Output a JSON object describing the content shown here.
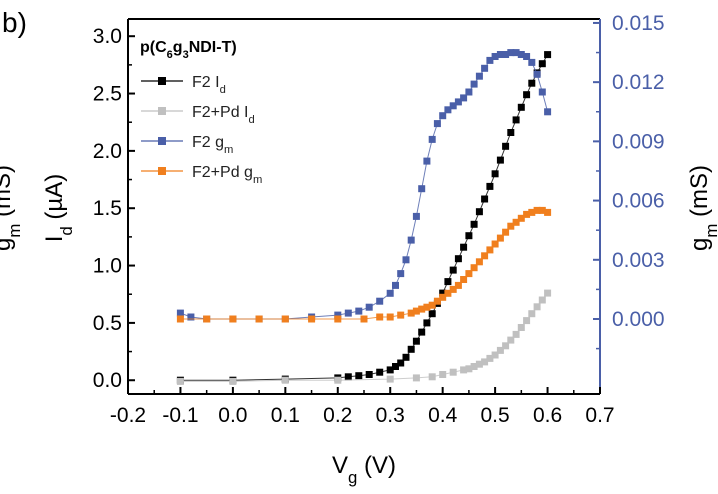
{
  "chart_data": {
    "type": "scatter",
    "panel_label": "b)",
    "legend_title": {
      "main": "p(C",
      "sub1": "6",
      "mid": "g",
      "sub2": "3",
      "tail": "NDI-T)"
    },
    "legend_position": "top-left",
    "xlabel": {
      "main": "V",
      "sub": "g",
      "unit": " (V)"
    },
    "ylabel_left": {
      "main": "I",
      "sub": "d",
      "unit": " (µA)"
    },
    "ylabel_right": {
      "main": "g",
      "sub": "m",
      "unit": " (mS)"
    },
    "ylabel_left_clipped": {
      "main": "g",
      "sub": "m",
      "unit": " (mS)"
    },
    "xlim": [
      -0.2,
      0.7
    ],
    "ylim_left": [
      -0.12,
      3.15
    ],
    "ylim_right": [
      -0.0038,
      0.0152
    ],
    "x_ticks": [
      "-0.2",
      "-0.1",
      "0.0",
      "0.1",
      "0.2",
      "0.3",
      "0.4",
      "0.5",
      "0.6",
      "0.7"
    ],
    "y_left_ticks": [
      "0.0",
      "0.5",
      "1.0",
      "1.5",
      "2.0",
      "2.5",
      "3.0"
    ],
    "y_right_ticks": [
      "0.000",
      "0.003",
      "0.006",
      "0.009",
      "0.012",
      "0.015"
    ],
    "grid": false,
    "colors": {
      "axis": "#000000",
      "right_axis": "#4a5fa8",
      "F2_Id": "#000000",
      "F2Pd_Id": "#c0c0c0",
      "F2_gm": "#4a5fa8",
      "F2Pd_gm": "#f07f1e"
    },
    "series": [
      {
        "name": {
          "main": "F2 I",
          "sub": "d"
        },
        "axis": "left",
        "color": "#000000",
        "x": [
          -0.1,
          0.0,
          0.1,
          0.2,
          0.22,
          0.24,
          0.26,
          0.28,
          0.3,
          0.31,
          0.32,
          0.33,
          0.34,
          0.35,
          0.36,
          0.37,
          0.38,
          0.39,
          0.4,
          0.41,
          0.42,
          0.43,
          0.44,
          0.45,
          0.46,
          0.47,
          0.48,
          0.49,
          0.5,
          0.51,
          0.52,
          0.53,
          0.54,
          0.55,
          0.56,
          0.57,
          0.58,
          0.59,
          0.6
        ],
        "y": [
          0.0,
          0.0,
          0.01,
          0.02,
          0.03,
          0.04,
          0.05,
          0.07,
          0.09,
          0.12,
          0.15,
          0.2,
          0.27,
          0.34,
          0.42,
          0.5,
          0.58,
          0.67,
          0.76,
          0.86,
          0.96,
          1.06,
          1.16,
          1.26,
          1.36,
          1.47,
          1.58,
          1.69,
          1.8,
          1.92,
          2.04,
          2.16,
          2.27,
          2.38,
          2.49,
          2.59,
          2.68,
          2.76,
          2.84
        ]
      },
      {
        "name": {
          "main": "F2+Pd I",
          "sub": "d"
        },
        "axis": "left",
        "color": "#c0c0c0",
        "x": [
          -0.1,
          0.0,
          0.1,
          0.2,
          0.3,
          0.35,
          0.38,
          0.4,
          0.42,
          0.44,
          0.45,
          0.46,
          0.47,
          0.48,
          0.49,
          0.5,
          0.51,
          0.52,
          0.53,
          0.54,
          0.55,
          0.56,
          0.57,
          0.58,
          0.59,
          0.6
        ],
        "y": [
          -0.01,
          -0.01,
          0.0,
          0.0,
          0.01,
          0.02,
          0.03,
          0.05,
          0.07,
          0.09,
          0.1,
          0.12,
          0.14,
          0.16,
          0.19,
          0.22,
          0.26,
          0.3,
          0.35,
          0.4,
          0.46,
          0.52,
          0.58,
          0.64,
          0.7,
          0.76
        ]
      },
      {
        "name": {
          "main": "F2 g",
          "sub": "m"
        },
        "axis": "right",
        "color": "#4a5fa8",
        "x": [
          -0.1,
          -0.08,
          -0.05,
          0.0,
          0.05,
          0.1,
          0.15,
          0.2,
          0.22,
          0.24,
          0.26,
          0.28,
          0.3,
          0.31,
          0.32,
          0.33,
          0.34,
          0.35,
          0.36,
          0.37,
          0.38,
          0.39,
          0.4,
          0.41,
          0.42,
          0.43,
          0.44,
          0.45,
          0.46,
          0.47,
          0.48,
          0.49,
          0.5,
          0.51,
          0.52,
          0.53,
          0.54,
          0.55,
          0.56,
          0.57,
          0.58,
          0.59,
          0.6
        ],
        "y": [
          0.0003,
          0.0001,
          0.0,
          0.0,
          0.0,
          0.0,
          0.0001,
          0.0002,
          0.0003,
          0.0004,
          0.0006,
          0.0009,
          0.0013,
          0.0017,
          0.0023,
          0.003,
          0.004,
          0.0052,
          0.0066,
          0.008,
          0.0091,
          0.0099,
          0.0103,
          0.0106,
          0.0108,
          0.011,
          0.0112,
          0.0115,
          0.0119,
          0.0123,
          0.0127,
          0.0131,
          0.0133,
          0.0134,
          0.0134,
          0.0135,
          0.0135,
          0.0134,
          0.0133,
          0.013,
          0.0124,
          0.0115,
          0.0105
        ]
      },
      {
        "name": {
          "main": "F2+Pd g",
          "sub": "m"
        },
        "axis": "right",
        "color": "#f07f1e",
        "x": [
          -0.1,
          -0.05,
          0.0,
          0.05,
          0.1,
          0.15,
          0.2,
          0.25,
          0.28,
          0.3,
          0.32,
          0.34,
          0.35,
          0.36,
          0.37,
          0.38,
          0.39,
          0.4,
          0.41,
          0.42,
          0.43,
          0.44,
          0.45,
          0.46,
          0.47,
          0.48,
          0.49,
          0.5,
          0.51,
          0.52,
          0.53,
          0.54,
          0.55,
          0.56,
          0.57,
          0.58,
          0.59,
          0.6
        ],
        "y": [
          0.0,
          0.0,
          0.0,
          0.0,
          0.0,
          0.0,
          0.0,
          0.0,
          0.0001,
          0.0001,
          0.0002,
          0.0003,
          0.0004,
          0.0005,
          0.0006,
          0.0007,
          0.0009,
          0.0011,
          0.0013,
          0.0015,
          0.0017,
          0.002,
          0.0023,
          0.0026,
          0.0029,
          0.0032,
          0.0035,
          0.0038,
          0.0041,
          0.0044,
          0.0047,
          0.0049,
          0.0051,
          0.0053,
          0.0054,
          0.0055,
          0.0055,
          0.0054
        ]
      }
    ]
  }
}
